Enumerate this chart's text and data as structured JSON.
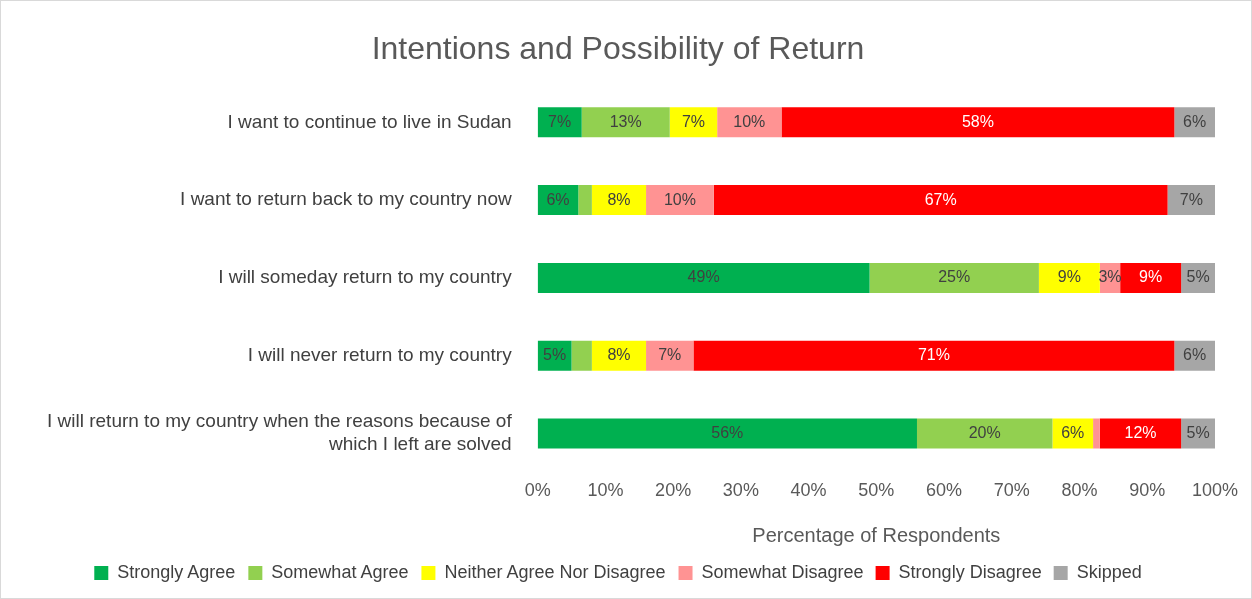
{
  "chart_data": {
    "type": "bar",
    "orientation": "horizontal",
    "stacked": true,
    "title": "Intentions and Possibility of Return",
    "xlabel": "Percentage of Respondents",
    "categories": [
      "I want to continue to live in Sudan",
      "I want to return back to my country now",
      "I will someday return to my country",
      "I will never return to my country",
      "I will return to my country when the reasons because of which I left are solved"
    ],
    "series": [
      {
        "name": "Strongly Agree",
        "color": "#00b050",
        "values": [
          6.5,
          6,
          49,
          5,
          56
        ],
        "value_labels": [
          "7%",
          "6%",
          "49%",
          "5%",
          "56%"
        ]
      },
      {
        "name": "Somewhat Agree",
        "color": "#92d050",
        "values": [
          13,
          2,
          25,
          3,
          20
        ],
        "value_labels": [
          "13%",
          null,
          "25%",
          null,
          "20%"
        ]
      },
      {
        "name": "Neither Agree Nor Disagree",
        "color": "#ffff00",
        "values": [
          7,
          8,
          9,
          8,
          6
        ],
        "value_labels": [
          "7%",
          "8%",
          "9%",
          "8%",
          "6%"
        ]
      },
      {
        "name": "Somewhat Disagree",
        "color": "#ff9393",
        "values": [
          9.5,
          10,
          3,
          7,
          1
        ],
        "value_labels": [
          "10%",
          "10%",
          "3%",
          "7%",
          null
        ]
      },
      {
        "name": "Strongly Disagree",
        "color": "#ff0000",
        "values": [
          58,
          67,
          9,
          71,
          12
        ],
        "value_labels": [
          "58%",
          "67%",
          "9%",
          "71%",
          "12%"
        ]
      },
      {
        "name": "Skipped",
        "color": "#a6a6a6",
        "values": [
          6,
          7,
          5,
          6,
          5
        ],
        "value_labels": [
          "6%",
          "7%",
          "5%",
          "6%",
          "5%"
        ]
      }
    ],
    "xlim": [
      0,
      100
    ],
    "xticks": [
      {
        "value": 0,
        "label": "0%"
      },
      {
        "value": 10,
        "label": "10%"
      },
      {
        "value": 20,
        "label": "20%"
      },
      {
        "value": 30,
        "label": "30%"
      },
      {
        "value": 40,
        "label": "40%"
      },
      {
        "value": 50,
        "label": "50%"
      },
      {
        "value": 60,
        "label": "60%"
      },
      {
        "value": 70,
        "label": "70%"
      },
      {
        "value": 80,
        "label": "80%"
      },
      {
        "value": 90,
        "label": "90%"
      },
      {
        "value": 100,
        "label": "100%"
      }
    ],
    "grid": false,
    "legend": "bottom"
  }
}
